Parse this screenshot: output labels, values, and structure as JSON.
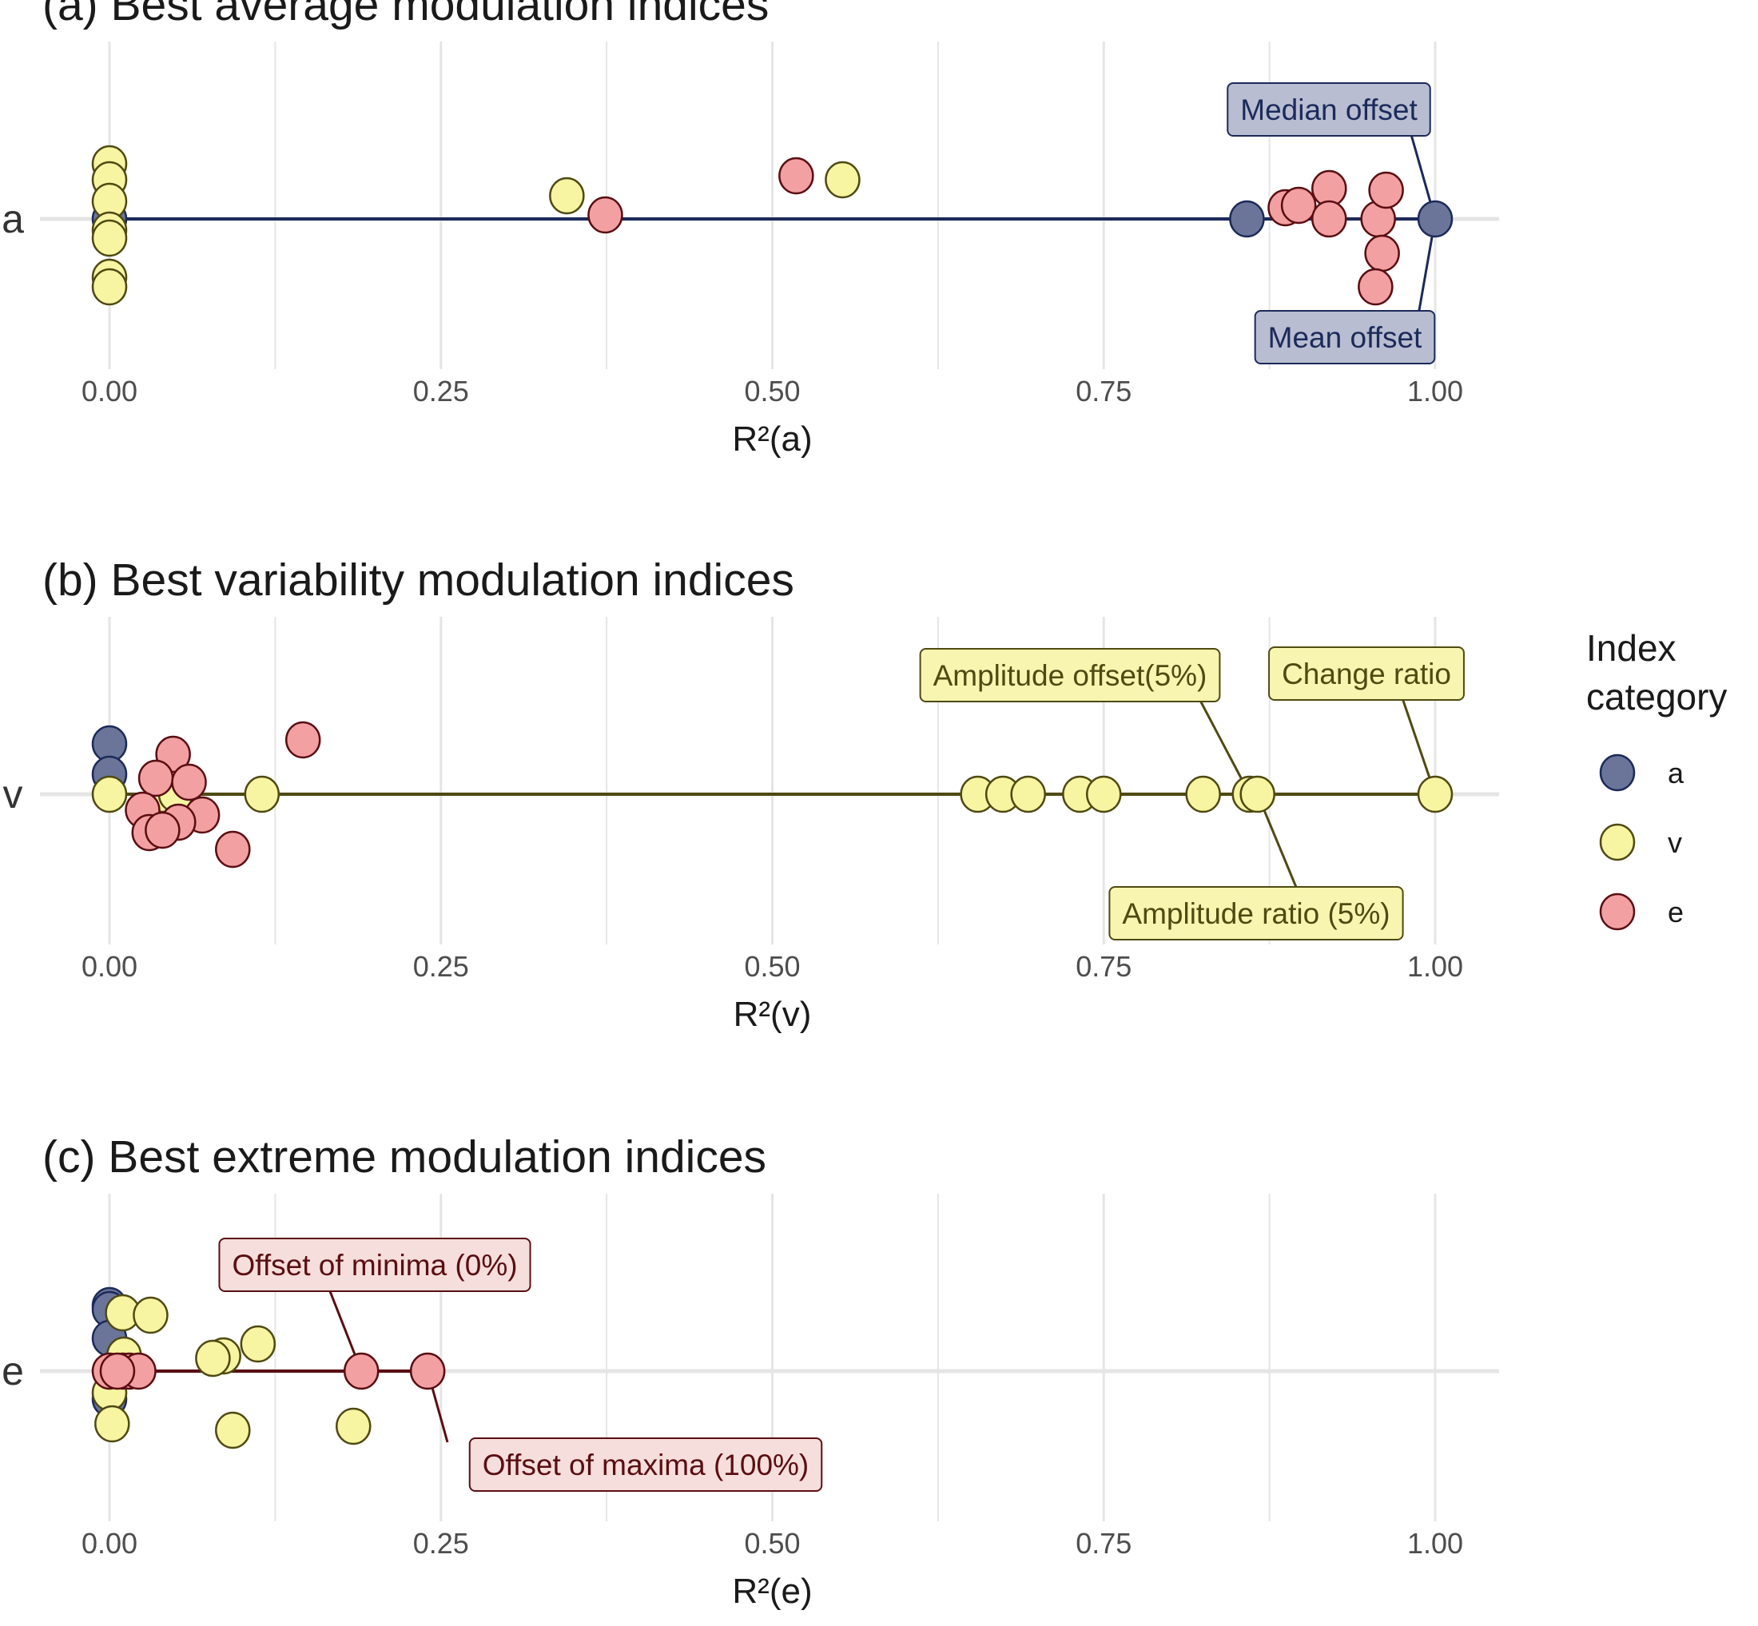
{
  "colors": {
    "a": "#6B7599",
    "v": "#F7F5A2",
    "e": "#F2A0A2",
    "a_line": "#1C2A5A",
    "v_line": "#4F4A12",
    "e_line": "#5A0E12",
    "a_label_bg": "#B8BDD1",
    "v_label_bg": "#F7F5B0",
    "e_label_bg": "#F6DEDC",
    "grid": "#E5E5E5"
  },
  "legend": {
    "title_line1": "Index",
    "title_line2": "category",
    "items": [
      {
        "key": "a",
        "label": "a"
      },
      {
        "key": "v",
        "label": "v"
      },
      {
        "key": "e",
        "label": "e"
      }
    ]
  },
  "chart_data": [
    {
      "type": "scatter",
      "title": "(a) Best average modulation indices",
      "xlabel": "R²(a)",
      "ylabel_category": "a",
      "line_color": "a",
      "xlim": [
        0,
        1
      ],
      "xticks": [
        "0.00",
        "0.25",
        "0.50",
        "0.75",
        "1.00"
      ],
      "segment": [
        0,
        1
      ],
      "series": [
        {
          "name": "a",
          "points": [
            [
              0,
              0
            ],
            [
              0.858,
              0
            ],
            [
              1.0,
              0
            ]
          ]
        },
        {
          "name": "v",
          "points": [
            [
              0,
              0.69
            ],
            [
              0,
              0.49
            ],
            [
              0,
              0.22
            ],
            [
              0,
              -0.14
            ],
            [
              0,
              -0.24
            ],
            [
              0,
              -0.73
            ],
            [
              0,
              -0.85
            ],
            [
              0.345,
              0.29
            ],
            [
              0.553,
              0.49
            ]
          ]
        },
        {
          "name": "e",
          "points": [
            [
              0.374,
              0.05
            ],
            [
              0.518,
              0.54
            ],
            [
              0.887,
              0.14
            ],
            [
              0.897,
              0.17
            ],
            [
              0.92,
              0.38
            ],
            [
              0.92,
              0.0
            ],
            [
              0.957,
              0.0
            ],
            [
              0.963,
              0.36
            ],
            [
              0.96,
              -0.43
            ],
            [
              0.955,
              -0.85
            ]
          ]
        }
      ],
      "annotations": [
        {
          "text": "Median offset",
          "cat": "a",
          "x": 1.0,
          "y": 0
        },
        {
          "text": "Mean offset",
          "cat": "a",
          "x": 1.0,
          "y": 0
        }
      ]
    },
    {
      "type": "scatter",
      "title": "(b) Best variability modulation indices",
      "xlabel": "R²(v)",
      "ylabel_category": "v",
      "line_color": "v",
      "xlim": [
        0,
        1
      ],
      "xticks": [
        "0.00",
        "0.25",
        "0.50",
        "0.75",
        "1.00"
      ],
      "segment": [
        0,
        1
      ],
      "series": [
        {
          "name": "a",
          "points": [
            [
              0,
              0.63
            ],
            [
              0,
              0.25
            ]
          ]
        },
        {
          "name": "v",
          "points": [
            [
              0,
              0
            ],
            [
              0.04,
              0
            ],
            [
              0.05,
              0
            ],
            [
              0.115,
              0
            ],
            [
              0.655,
              0
            ],
            [
              0.674,
              0
            ],
            [
              0.693,
              0
            ],
            [
              0.732,
              0
            ],
            [
              0.75,
              0
            ],
            [
              0.825,
              0
            ],
            [
              0.86,
              0
            ],
            [
              0.866,
              0
            ],
            [
              1.0,
              0
            ]
          ]
        },
        {
          "name": "e",
          "points": [
            [
              0.146,
              0.68
            ],
            [
              0.048,
              0.5
            ],
            [
              0.035,
              0.2
            ],
            [
              0.06,
              0.15
            ],
            [
              0.025,
              -0.2
            ],
            [
              0.07,
              -0.26
            ],
            [
              0.052,
              -0.35
            ],
            [
              0.03,
              -0.48
            ],
            [
              0.04,
              -0.45
            ],
            [
              0.093,
              -0.69
            ]
          ]
        }
      ],
      "annotations": [
        {
          "text": "Amplitude offset(5%)",
          "cat": "v",
          "x": 0.86,
          "y": 0
        },
        {
          "text": "Change ratio",
          "cat": "v",
          "x": 1.0,
          "y": 0
        },
        {
          "text": "Amplitude ratio (5%)",
          "cat": "v",
          "x": 0.866,
          "y": 0
        }
      ]
    },
    {
      "type": "scatter",
      "title": "(c) Best extreme modulation indices",
      "xlabel": "R²(e)",
      "ylabel_category": "e",
      "line_color": "e",
      "xlim": [
        0,
        1
      ],
      "xticks": [
        "0.00",
        "0.25",
        "0.50",
        "0.75",
        "1.00"
      ],
      "segment": [
        0,
        0.24
      ],
      "series": [
        {
          "name": "a",
          "points": [
            [
              0,
              0.82
            ],
            [
              0,
              0.77
            ],
            [
              0,
              0.41
            ],
            [
              0,
              -0.35
            ]
          ]
        },
        {
          "name": "v",
          "points": [
            [
              0.01,
              0.73
            ],
            [
              0.031,
              0.7
            ],
            [
              0.011,
              0.2
            ],
            [
              0.112,
              0.34
            ],
            [
              0.086,
              0.19
            ],
            [
              0.078,
              0.16
            ],
            [
              0,
              -0.27
            ],
            [
              0.002,
              -0.66
            ],
            [
              0.093,
              -0.74
            ],
            [
              0.184,
              -0.69
            ]
          ]
        },
        {
          "name": "e",
          "points": [
            [
              0,
              0
            ],
            [
              0.01,
              0
            ],
            [
              0.015,
              0
            ],
            [
              0.022,
              0
            ],
            [
              0.006,
              0
            ],
            [
              0.19,
              0
            ],
            [
              0.24,
              0
            ]
          ]
        }
      ],
      "annotations": [
        {
          "text": "Offset of minima (0%)",
          "cat": "e",
          "x": 0.19,
          "y": 0
        },
        {
          "text": "Offset of maxima (100%)",
          "cat": "e",
          "x": 0.24,
          "y": 0
        }
      ]
    }
  ]
}
